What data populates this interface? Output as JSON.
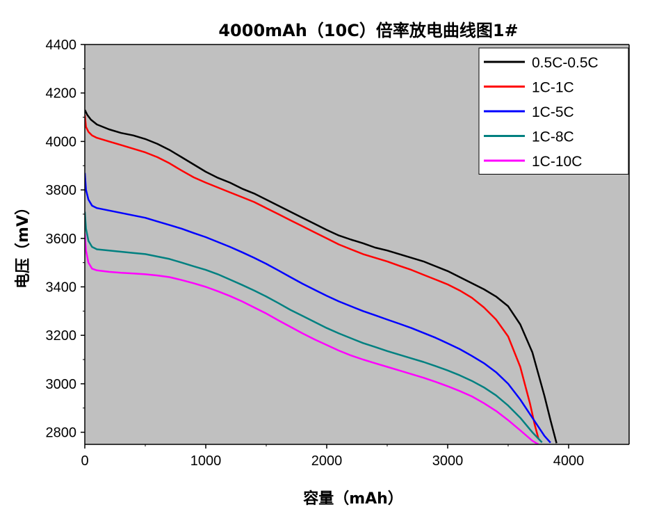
{
  "chart_data": {
    "type": "line",
    "title": "4000mAh（10C）倍率放电曲线图1#",
    "xlabel": "容量（mAh）",
    "ylabel": "电压（mV）",
    "xlim": [
      0,
      4500
    ],
    "ylim": [
      2750,
      4400
    ],
    "x_ticks": [
      0,
      1000,
      2000,
      3000,
      4000
    ],
    "y_ticks": [
      2800,
      3000,
      3200,
      3400,
      3600,
      3800,
      4000,
      4200,
      4400
    ],
    "grid": false,
    "background_color": "#c0c0c0",
    "legend_position": "top-right",
    "series": [
      {
        "name": "0.5C-0.5C",
        "color": "#000000",
        "points": [
          [
            0,
            4130
          ],
          [
            20,
            4110
          ],
          [
            50,
            4090
          ],
          [
            100,
            4070
          ],
          [
            200,
            4050
          ],
          [
            300,
            4035
          ],
          [
            400,
            4025
          ],
          [
            500,
            4010
          ],
          [
            600,
            3990
          ],
          [
            700,
            3965
          ],
          [
            800,
            3935
          ],
          [
            900,
            3905
          ],
          [
            1000,
            3875
          ],
          [
            1100,
            3850
          ],
          [
            1200,
            3830
          ],
          [
            1300,
            3805
          ],
          [
            1400,
            3785
          ],
          [
            1500,
            3760
          ],
          [
            1600,
            3735
          ],
          [
            1700,
            3710
          ],
          [
            1800,
            3685
          ],
          [
            1900,
            3660
          ],
          [
            2000,
            3635
          ],
          [
            2100,
            3612
          ],
          [
            2200,
            3595
          ],
          [
            2300,
            3580
          ],
          [
            2400,
            3562
          ],
          [
            2500,
            3550
          ],
          [
            2600,
            3535
          ],
          [
            2700,
            3520
          ],
          [
            2800,
            3505
          ],
          [
            2900,
            3485
          ],
          [
            3000,
            3465
          ],
          [
            3100,
            3440
          ],
          [
            3200,
            3415
          ],
          [
            3300,
            3390
          ],
          [
            3400,
            3360
          ],
          [
            3500,
            3320
          ],
          [
            3600,
            3245
          ],
          [
            3700,
            3130
          ],
          [
            3750,
            3040
          ],
          [
            3800,
            2950
          ],
          [
            3850,
            2850
          ],
          [
            3900,
            2755
          ]
        ]
      },
      {
        "name": "1C-1C",
        "color": "#ff0000",
        "points": [
          [
            0,
            4110
          ],
          [
            10,
            4060
          ],
          [
            30,
            4040
          ],
          [
            60,
            4025
          ],
          [
            100,
            4015
          ],
          [
            200,
            4000
          ],
          [
            300,
            3985
          ],
          [
            400,
            3970
          ],
          [
            500,
            3955
          ],
          [
            600,
            3935
          ],
          [
            700,
            3910
          ],
          [
            800,
            3880
          ],
          [
            900,
            3852
          ],
          [
            1000,
            3830
          ],
          [
            1100,
            3810
          ],
          [
            1200,
            3790
          ],
          [
            1300,
            3770
          ],
          [
            1400,
            3750
          ],
          [
            1500,
            3725
          ],
          [
            1600,
            3700
          ],
          [
            1700,
            3675
          ],
          [
            1800,
            3650
          ],
          [
            1900,
            3625
          ],
          [
            2000,
            3600
          ],
          [
            2100,
            3575
          ],
          [
            2200,
            3555
          ],
          [
            2300,
            3535
          ],
          [
            2400,
            3520
          ],
          [
            2500,
            3505
          ],
          [
            2600,
            3487
          ],
          [
            2700,
            3470
          ],
          [
            2800,
            3450
          ],
          [
            2900,
            3430
          ],
          [
            3000,
            3410
          ],
          [
            3100,
            3385
          ],
          [
            3200,
            3355
          ],
          [
            3300,
            3315
          ],
          [
            3400,
            3265
          ],
          [
            3500,
            3195
          ],
          [
            3600,
            3070
          ],
          [
            3680,
            2920
          ],
          [
            3720,
            2830
          ],
          [
            3750,
            2775
          ]
        ]
      },
      {
        "name": "1C-5C",
        "color": "#0000ff",
        "points": [
          [
            0,
            3870
          ],
          [
            10,
            3800
          ],
          [
            30,
            3760
          ],
          [
            60,
            3735
          ],
          [
            100,
            3725
          ],
          [
            200,
            3715
          ],
          [
            300,
            3705
          ],
          [
            400,
            3695
          ],
          [
            500,
            3685
          ],
          [
            600,
            3670
          ],
          [
            700,
            3655
          ],
          [
            800,
            3640
          ],
          [
            900,
            3622
          ],
          [
            1000,
            3605
          ],
          [
            1100,
            3585
          ],
          [
            1200,
            3565
          ],
          [
            1300,
            3543
          ],
          [
            1400,
            3520
          ],
          [
            1500,
            3495
          ],
          [
            1600,
            3468
          ],
          [
            1700,
            3440
          ],
          [
            1800,
            3413
          ],
          [
            1900,
            3388
          ],
          [
            2000,
            3363
          ],
          [
            2100,
            3340
          ],
          [
            2200,
            3320
          ],
          [
            2300,
            3300
          ],
          [
            2400,
            3283
          ],
          [
            2500,
            3265
          ],
          [
            2600,
            3248
          ],
          [
            2700,
            3230
          ],
          [
            2800,
            3210
          ],
          [
            2900,
            3190
          ],
          [
            3000,
            3167
          ],
          [
            3100,
            3143
          ],
          [
            3200,
            3115
          ],
          [
            3300,
            3085
          ],
          [
            3400,
            3048
          ],
          [
            3500,
            3000
          ],
          [
            3600,
            2935
          ],
          [
            3700,
            2860
          ],
          [
            3800,
            2785
          ],
          [
            3850,
            2757
          ]
        ]
      },
      {
        "name": "1C-8C",
        "color": "#008080",
        "points": [
          [
            0,
            3710
          ],
          [
            10,
            3640
          ],
          [
            30,
            3590
          ],
          [
            60,
            3565
          ],
          [
            100,
            3555
          ],
          [
            200,
            3550
          ],
          [
            300,
            3545
          ],
          [
            400,
            3540
          ],
          [
            500,
            3535
          ],
          [
            600,
            3525
          ],
          [
            700,
            3515
          ],
          [
            800,
            3500
          ],
          [
            900,
            3485
          ],
          [
            1000,
            3470
          ],
          [
            1100,
            3452
          ],
          [
            1200,
            3430
          ],
          [
            1300,
            3408
          ],
          [
            1400,
            3385
          ],
          [
            1500,
            3360
          ],
          [
            1600,
            3333
          ],
          [
            1700,
            3305
          ],
          [
            1800,
            3280
          ],
          [
            1900,
            3255
          ],
          [
            2000,
            3230
          ],
          [
            2100,
            3208
          ],
          [
            2200,
            3188
          ],
          [
            2300,
            3168
          ],
          [
            2400,
            3152
          ],
          [
            2500,
            3135
          ],
          [
            2600,
            3120
          ],
          [
            2700,
            3105
          ],
          [
            2800,
            3090
          ],
          [
            2900,
            3073
          ],
          [
            3000,
            3055
          ],
          [
            3100,
            3035
          ],
          [
            3200,
            3012
          ],
          [
            3300,
            2985
          ],
          [
            3400,
            2952
          ],
          [
            3500,
            2910
          ],
          [
            3600,
            2860
          ],
          [
            3700,
            2800
          ],
          [
            3780,
            2758
          ]
        ]
      },
      {
        "name": "1C-10C",
        "color": "#ff00ff",
        "points": [
          [
            0,
            3620
          ],
          [
            10,
            3550
          ],
          [
            30,
            3500
          ],
          [
            60,
            3475
          ],
          [
            100,
            3468
          ],
          [
            200,
            3462
          ],
          [
            300,
            3458
          ],
          [
            400,
            3455
          ],
          [
            500,
            3452
          ],
          [
            600,
            3447
          ],
          [
            700,
            3440
          ],
          [
            800,
            3428
          ],
          [
            900,
            3415
          ],
          [
            1000,
            3400
          ],
          [
            1100,
            3382
          ],
          [
            1200,
            3362
          ],
          [
            1300,
            3340
          ],
          [
            1400,
            3315
          ],
          [
            1500,
            3290
          ],
          [
            1600,
            3262
          ],
          [
            1700,
            3235
          ],
          [
            1800,
            3208
          ],
          [
            1900,
            3183
          ],
          [
            2000,
            3160
          ],
          [
            2100,
            3137
          ],
          [
            2200,
            3117
          ],
          [
            2300,
            3100
          ],
          [
            2400,
            3085
          ],
          [
            2500,
            3070
          ],
          [
            2600,
            3055
          ],
          [
            2700,
            3040
          ],
          [
            2800,
            3025
          ],
          [
            2900,
            3008
          ],
          [
            3000,
            2990
          ],
          [
            3100,
            2970
          ],
          [
            3200,
            2948
          ],
          [
            3300,
            2920
          ],
          [
            3400,
            2888
          ],
          [
            3500,
            2850
          ],
          [
            3600,
            2808
          ],
          [
            3700,
            2765
          ],
          [
            3750,
            2750
          ]
        ]
      }
    ]
  }
}
